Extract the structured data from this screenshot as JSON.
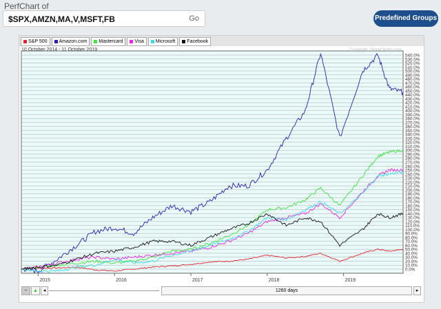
{
  "header": {
    "title": "PerfChart of",
    "symbols": "$SPX,AMZN,MA,V,MSFT,FB",
    "go_label": "Go",
    "predefined_label": "Predefined Groups"
  },
  "legend": [
    {
      "label": "S&P 500",
      "color": "#e0262f"
    },
    {
      "label": "Amazon.com",
      "color": "#2a1fb0"
    },
    {
      "label": "Mastercard",
      "color": "#3ee63e"
    },
    {
      "label": "Visa",
      "color": "#e628e6"
    },
    {
      "label": "Microsoft",
      "color": "#3ed8e8"
    },
    {
      "label": "Facebook",
      "color": "#111111"
    }
  ],
  "chart": {
    "date_range": "10 October 2014 - 11 October 2019",
    "copyright": "Copyright, StockCharts.com",
    "slider_label": "1260 days"
  },
  "chart_data": {
    "type": "line",
    "title": "10 October 2014 - 11 October 2019",
    "x_tick_labels": [
      "2015",
      "2016",
      "2017",
      "2018",
      "2019"
    ],
    "x_ticks": [
      2015,
      2016,
      2017,
      2018,
      2019
    ],
    "ylim": [
      0,
      540
    ],
    "y_step": 10,
    "y_suffix": ".0%",
    "x": [
      2014.78,
      2015.0,
      2015.25,
      2015.5,
      2015.75,
      2016.0,
      2016.25,
      2016.5,
      2016.75,
      2017.0,
      2017.25,
      2017.5,
      2017.75,
      2018.0,
      2018.25,
      2018.5,
      2018.7,
      2018.95,
      2019.25,
      2019.45,
      2019.6,
      2019.78
    ],
    "series": [
      {
        "name": "S&P 500",
        "color": "#e0262f",
        "values": [
          0,
          2,
          3,
          5,
          -2,
          -5,
          0,
          5,
          8,
          12,
          18,
          20,
          25,
          35,
          28,
          32,
          40,
          20,
          40,
          50,
          45,
          50
        ]
      },
      {
        "name": "Amazon.com",
        "color": "#2a1fb0",
        "values": [
          0,
          -5,
          25,
          60,
          95,
          105,
          90,
          130,
          160,
          145,
          170,
          210,
          210,
          250,
          330,
          400,
          545,
          330,
          500,
          540,
          455,
          446
        ]
      },
      {
        "name": "Mastercard",
        "color": "#3ee63e",
        "values": [
          0,
          5,
          10,
          15,
          20,
          15,
          20,
          30,
          45,
          50,
          65,
          85,
          110,
          150,
          155,
          175,
          205,
          160,
          235,
          285,
          295,
          300
        ]
      },
      {
        "name": "Visa",
        "color": "#e628e6",
        "values": [
          0,
          5,
          15,
          25,
          30,
          25,
          30,
          35,
          40,
          45,
          55,
          70,
          90,
          120,
          130,
          140,
          165,
          130,
          195,
          235,
          250,
          250
        ]
      },
      {
        "name": "Microsoft",
        "color": "#3ed8e8",
        "values": [
          0,
          -5,
          -5,
          5,
          10,
          25,
          15,
          20,
          35,
          45,
          60,
          75,
          95,
          130,
          125,
          150,
          170,
          140,
          190,
          235,
          240,
          245
        ]
      },
      {
        "name": "Facebook",
        "color": "#111111",
        "values": [
          0,
          5,
          10,
          25,
          40,
          45,
          55,
          70,
          70,
          60,
          80,
          100,
          115,
          140,
          110,
          130,
          120,
          60,
          100,
          140,
          130,
          140
        ]
      }
    ]
  }
}
